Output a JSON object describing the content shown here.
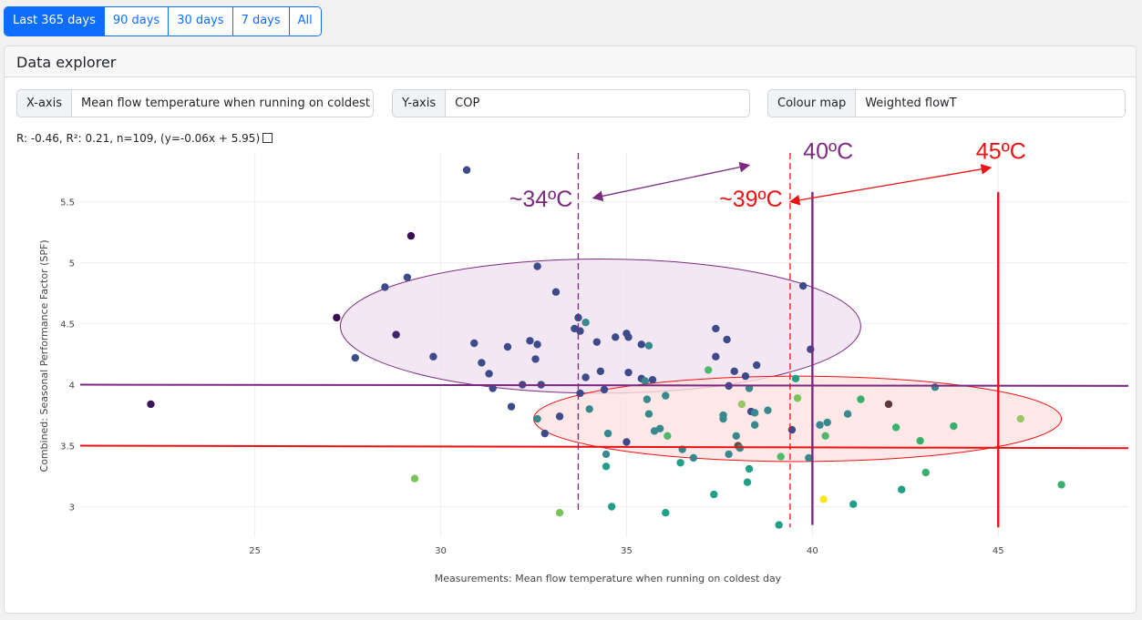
{
  "range_buttons": [
    {
      "label": "Last 365 days",
      "active": true
    },
    {
      "label": "90 days",
      "active": false
    },
    {
      "label": "30 days",
      "active": false
    },
    {
      "label": "7 days",
      "active": false
    },
    {
      "label": "All",
      "active": false
    }
  ],
  "explorer": {
    "title": "Data explorer",
    "x_axis": {
      "label": "X-axis",
      "value": "Mean flow temperature when running on coldest day"
    },
    "y_axis": {
      "label": "Y-axis",
      "value": "COP"
    },
    "colour_map": {
      "label": "Colour map",
      "value": "Weighted flowT"
    },
    "stats": "R: -0.46, R²: 0.21, n=109, (y=-0.06x + 5.95)"
  },
  "chart_data": {
    "type": "scatter",
    "xlabel": "Measurements: Mean flow temperature when running on coldest day",
    "ylabel": "Combined: Seasonal Performance Factor (SPF)",
    "xlim": [
      20.3,
      48.5
    ],
    "ylim": [
      2.75,
      5.9
    ],
    "xticks": [
      25,
      30,
      35,
      40,
      45
    ],
    "yticks": [
      3,
      3.5,
      4,
      4.5,
      5,
      5.5
    ],
    "grid": true,
    "colors": {
      "purple": "#7b2a7f",
      "red": "#ee1111",
      "ellipse_purple_fill": "#f1e1f1",
      "ellipse_red_fill": "#fde1e1"
    },
    "points": [
      {
        "x": 22.2,
        "y": 3.84,
        "c": "#3b1758"
      },
      {
        "x": 27.2,
        "y": 4.55,
        "c": "#3b0a55"
      },
      {
        "x": 27.7,
        "y": 4.22,
        "c": "#3d4b8a"
      },
      {
        "x": 28.5,
        "y": 4.8,
        "c": "#3d4b8a"
      },
      {
        "x": 28.8,
        "y": 4.41,
        "c": "#40246a"
      },
      {
        "x": 29.1,
        "y": 4.88,
        "c": "#3d4b8a"
      },
      {
        "x": 29.2,
        "y": 5.22,
        "c": "#3b0a55"
      },
      {
        "x": 29.3,
        "y": 3.23,
        "c": "#7cc25a"
      },
      {
        "x": 29.8,
        "y": 4.23,
        "c": "#3d4b8a"
      },
      {
        "x": 30.7,
        "y": 5.76,
        "c": "#3d4b8a"
      },
      {
        "x": 30.9,
        "y": 4.34,
        "c": "#3d4b8a"
      },
      {
        "x": 31.1,
        "y": 4.18,
        "c": "#3d4b8a"
      },
      {
        "x": 31.3,
        "y": 4.09,
        "c": "#3d4b8a"
      },
      {
        "x": 31.4,
        "y": 3.97,
        "c": "#3d4b8a"
      },
      {
        "x": 31.8,
        "y": 4.31,
        "c": "#3d4b8a"
      },
      {
        "x": 31.9,
        "y": 3.82,
        "c": "#3d4b8a"
      },
      {
        "x": 32.2,
        "y": 4.0,
        "c": "#3d4b8a"
      },
      {
        "x": 32.4,
        "y": 4.36,
        "c": "#3d4b8a"
      },
      {
        "x": 32.55,
        "y": 4.21,
        "c": "#3d4b8a"
      },
      {
        "x": 32.6,
        "y": 4.97,
        "c": "#3d4b8a"
      },
      {
        "x": 32.6,
        "y": 4.33,
        "c": "#3d4b8a"
      },
      {
        "x": 32.6,
        "y": 3.72,
        "c": "#38888d"
      },
      {
        "x": 32.7,
        "y": 4.0,
        "c": "#3d4b8a"
      },
      {
        "x": 32.8,
        "y": 3.6,
        "c": "#3d4b8a"
      },
      {
        "x": 33.1,
        "y": 4.76,
        "c": "#3d4b8a"
      },
      {
        "x": 33.2,
        "y": 3.74,
        "c": "#3d4b8a"
      },
      {
        "x": 33.2,
        "y": 2.95,
        "c": "#7cc25a"
      },
      {
        "x": 33.6,
        "y": 4.46,
        "c": "#3d4b8a"
      },
      {
        "x": 33.7,
        "y": 4.55,
        "c": "#3d4b8a"
      },
      {
        "x": 33.75,
        "y": 4.44,
        "c": "#3d4b8a"
      },
      {
        "x": 33.75,
        "y": 3.93,
        "c": "#3d4b8a"
      },
      {
        "x": 33.9,
        "y": 4.06,
        "c": "#3d4b8a"
      },
      {
        "x": 33.9,
        "y": 4.51,
        "c": "#38888d"
      },
      {
        "x": 34.0,
        "y": 3.8,
        "c": "#38888d"
      },
      {
        "x": 34.2,
        "y": 4.35,
        "c": "#3d4b8a"
      },
      {
        "x": 34.3,
        "y": 4.11,
        "c": "#3d4b8a"
      },
      {
        "x": 34.4,
        "y": 3.96,
        "c": "#3d4b8a"
      },
      {
        "x": 34.45,
        "y": 3.43,
        "c": "#38888d"
      },
      {
        "x": 34.5,
        "y": 3.6,
        "c": "#38888d"
      },
      {
        "x": 34.45,
        "y": 3.33,
        "c": "#219f87"
      },
      {
        "x": 34.6,
        "y": 3.0,
        "c": "#219f87"
      },
      {
        "x": 34.7,
        "y": 4.39,
        "c": "#3d4b8a"
      },
      {
        "x": 35.0,
        "y": 4.42,
        "c": "#3d4b8a"
      },
      {
        "x": 35.05,
        "y": 4.39,
        "c": "#3d4b8a"
      },
      {
        "x": 35.0,
        "y": 3.53,
        "c": "#3d4b8a"
      },
      {
        "x": 35.05,
        "y": 4.1,
        "c": "#3d4b8a"
      },
      {
        "x": 35.4,
        "y": 4.05,
        "c": "#3d4b8a"
      },
      {
        "x": 35.4,
        "y": 4.33,
        "c": "#3d4b8a"
      },
      {
        "x": 35.5,
        "y": 4.03,
        "c": "#38888d"
      },
      {
        "x": 35.55,
        "y": 3.88,
        "c": "#38888d"
      },
      {
        "x": 35.6,
        "y": 4.32,
        "c": "#38888d"
      },
      {
        "x": 35.6,
        "y": 3.76,
        "c": "#38888d"
      },
      {
        "x": 35.7,
        "y": 4.04,
        "c": "#3d4b8a"
      },
      {
        "x": 35.75,
        "y": 3.62,
        "c": "#38888d"
      },
      {
        "x": 35.9,
        "y": 3.64,
        "c": "#38888d"
      },
      {
        "x": 36.05,
        "y": 3.91,
        "c": "#38888d"
      },
      {
        "x": 36.05,
        "y": 2.95,
        "c": "#219f87"
      },
      {
        "x": 36.1,
        "y": 3.58,
        "c": "#50b86b"
      },
      {
        "x": 36.45,
        "y": 3.36,
        "c": "#219f87"
      },
      {
        "x": 36.5,
        "y": 3.47,
        "c": "#38888d"
      },
      {
        "x": 36.8,
        "y": 3.4,
        "c": "#38888d"
      },
      {
        "x": 37.2,
        "y": 4.12,
        "c": "#50b86b"
      },
      {
        "x": 37.35,
        "y": 3.1,
        "c": "#219f87"
      },
      {
        "x": 37.4,
        "y": 4.46,
        "c": "#3d4b8a"
      },
      {
        "x": 37.4,
        "y": 4.23,
        "c": "#3d4b8a"
      },
      {
        "x": 37.6,
        "y": 3.75,
        "c": "#38888d"
      },
      {
        "x": 37.6,
        "y": 3.72,
        "c": "#38888d"
      },
      {
        "x": 37.7,
        "y": 4.37,
        "c": "#3d4b8a"
      },
      {
        "x": 37.75,
        "y": 3.99,
        "c": "#3d4b8a"
      },
      {
        "x": 37.75,
        "y": 3.43,
        "c": "#38888d"
      },
      {
        "x": 37.9,
        "y": 4.11,
        "c": "#3d4b8a"
      },
      {
        "x": 37.95,
        "y": 3.58,
        "c": "#38888d"
      },
      {
        "x": 38.0,
        "y": 3.5,
        "c": "#6b4a3a"
      },
      {
        "x": 38.05,
        "y": 3.48,
        "c": "#38888d"
      },
      {
        "x": 38.1,
        "y": 3.84,
        "c": "#9bc46a"
      },
      {
        "x": 38.2,
        "y": 4.07,
        "c": "#3d4b8a"
      },
      {
        "x": 38.25,
        "y": 3.2,
        "c": "#219f87"
      },
      {
        "x": 38.3,
        "y": 3.31,
        "c": "#219f87"
      },
      {
        "x": 38.3,
        "y": 3.97,
        "c": "#38888d"
      },
      {
        "x": 38.35,
        "y": 3.78,
        "c": "#3d4b8a"
      },
      {
        "x": 38.45,
        "y": 3.77,
        "c": "#38888d"
      },
      {
        "x": 38.45,
        "y": 3.67,
        "c": "#38888d"
      },
      {
        "x": 38.5,
        "y": 4.16,
        "c": "#3d4b8a"
      },
      {
        "x": 38.8,
        "y": 3.79,
        "c": "#38888d"
      },
      {
        "x": 39.1,
        "y": 2.85,
        "c": "#219f87"
      },
      {
        "x": 39.15,
        "y": 3.41,
        "c": "#50b86b"
      },
      {
        "x": 39.45,
        "y": 3.63,
        "c": "#3d4b8a"
      },
      {
        "x": 39.55,
        "y": 4.05,
        "c": "#219f87"
      },
      {
        "x": 39.6,
        "y": 3.89,
        "c": "#7cc25a"
      },
      {
        "x": 39.75,
        "y": 4.81,
        "c": "#3d4b8a"
      },
      {
        "x": 39.9,
        "y": 3.4,
        "c": "#38888d"
      },
      {
        "x": 39.95,
        "y": 4.29,
        "c": "#3d4b8a"
      },
      {
        "x": 40.2,
        "y": 3.67,
        "c": "#38888d"
      },
      {
        "x": 40.3,
        "y": 3.06,
        "c": "#fde725"
      },
      {
        "x": 40.35,
        "y": 3.58,
        "c": "#50b86b"
      },
      {
        "x": 40.4,
        "y": 3.69,
        "c": "#38888d"
      },
      {
        "x": 40.95,
        "y": 3.76,
        "c": "#38888d"
      },
      {
        "x": 41.1,
        "y": 3.02,
        "c": "#219f87"
      },
      {
        "x": 41.3,
        "y": 3.88,
        "c": "#38b06b"
      },
      {
        "x": 42.05,
        "y": 3.84,
        "c": "#5a3a3a"
      },
      {
        "x": 42.25,
        "y": 3.65,
        "c": "#38b06b"
      },
      {
        "x": 42.4,
        "y": 3.14,
        "c": "#219f87"
      },
      {
        "x": 42.9,
        "y": 3.54,
        "c": "#38b06b"
      },
      {
        "x": 43.05,
        "y": 3.28,
        "c": "#38b06b"
      },
      {
        "x": 43.3,
        "y": 3.98,
        "c": "#38888d"
      },
      {
        "x": 43.8,
        "y": 3.66,
        "c": "#38b06b"
      },
      {
        "x": 45.6,
        "y": 3.72,
        "c": "#9bc46a"
      },
      {
        "x": 46.7,
        "y": 3.18,
        "c": "#38b06b"
      }
    ],
    "annotations": {
      "hlines": [
        {
          "y0": 4.0,
          "y1": 3.99,
          "color": "purple"
        },
        {
          "y0": 3.5,
          "y1": 3.48,
          "color": "red"
        }
      ],
      "vlines": [
        {
          "x": 33.7,
          "y_range": [
            2.97,
            5.9
          ],
          "color": "purple",
          "dashed": true
        },
        {
          "x": 40.0,
          "y_range": [
            2.85,
            5.58
          ],
          "color": "purple",
          "dashed": false
        },
        {
          "x": 39.4,
          "y_range": [
            2.83,
            5.9
          ],
          "color": "red",
          "dashed": true
        },
        {
          "x": 45.0,
          "y_range": [
            2.83,
            5.58
          ],
          "color": "red",
          "dashed": false
        }
      ],
      "ellipses": [
        {
          "cx": 34.3,
          "cy": 4.48,
          "rx": 7.0,
          "ry": 0.55,
          "color": "purple"
        },
        {
          "cx": 39.6,
          "cy": 3.72,
          "rx": 7.1,
          "ry": 0.35,
          "color": "red"
        }
      ],
      "labels": [
        {
          "text": "~34ºC",
          "x": 33.55,
          "y": 5.46,
          "color": "purple",
          "anchor": "end"
        },
        {
          "text": "40ºC",
          "x": 39.75,
          "y": 5.85,
          "color": "purple",
          "anchor": "start"
        },
        {
          "text": "~39ºC",
          "x": 39.2,
          "y": 5.46,
          "color": "red",
          "anchor": "end"
        },
        {
          "text": "45ºC",
          "x": 44.4,
          "y": 5.85,
          "color": "red",
          "anchor": "start"
        }
      ],
      "arrows": [
        {
          "from": [
            38.3,
            5.8
          ],
          "to": [
            34.1,
            5.53
          ],
          "color": "purple",
          "both": true
        },
        {
          "from": [
            44.8,
            5.78
          ],
          "to": [
            39.4,
            5.5
          ],
          "color": "red",
          "both": true
        }
      ]
    }
  }
}
